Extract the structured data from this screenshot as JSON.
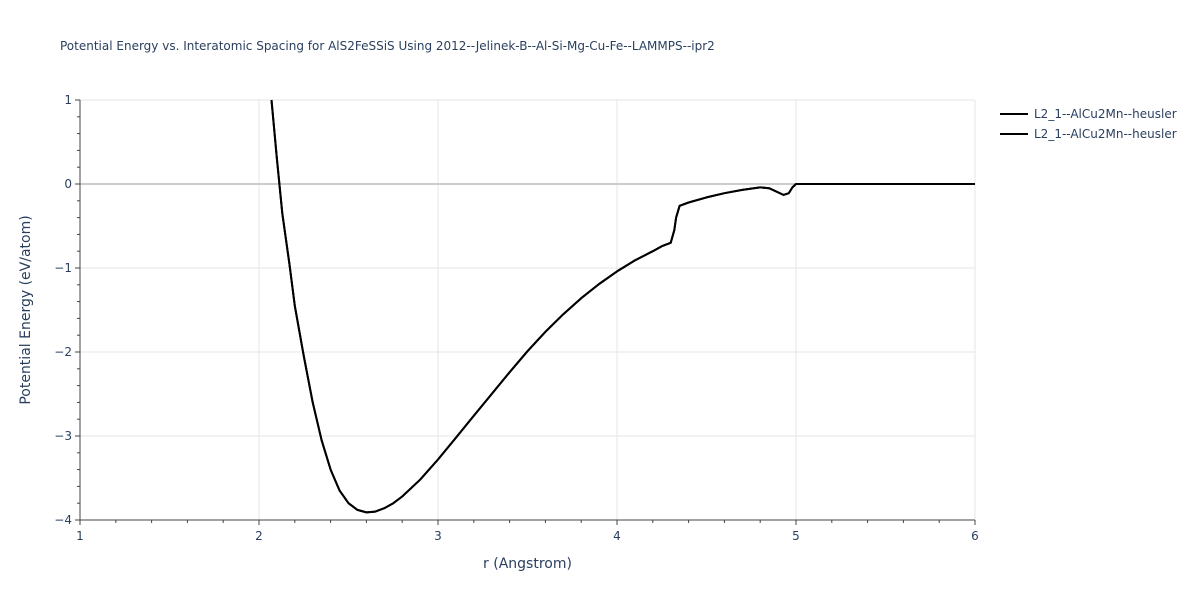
{
  "chart_data": {
    "type": "line",
    "title": "Potential Energy vs. Interatomic Spacing for AlS2FeSSiS Using 2012--Jelinek-B--Al-Si-Mg-Cu-Fe--LAMMPS--ipr2",
    "xlabel": "r (Angstrom)",
    "ylabel": "Potential Energy (eV/atom)",
    "xlim": [
      1,
      6
    ],
    "ylim": [
      -4,
      1
    ],
    "x_ticks": [
      "1",
      "2",
      "3",
      "4",
      "5",
      "6"
    ],
    "y_ticks": [
      "−4",
      "−3",
      "−2",
      "−1",
      "0",
      "1"
    ],
    "grid": true,
    "legend_position": "top-right",
    "series_color": "#000000",
    "series": [
      {
        "name": "L2_1--AlCu2Mn--heusler",
        "x": [
          2.07,
          2.1,
          2.13,
          2.17,
          2.2,
          2.25,
          2.3,
          2.35,
          2.4,
          2.45,
          2.5,
          2.55,
          2.6,
          2.65,
          2.7,
          2.75,
          2.8,
          2.9,
          3.0,
          3.1,
          3.2,
          3.3,
          3.4,
          3.5,
          3.6,
          3.7,
          3.8,
          3.9,
          4.0,
          4.1,
          4.2,
          4.25,
          4.3,
          4.32,
          4.33,
          4.35,
          4.4,
          4.5,
          4.6,
          4.7,
          4.8,
          4.85,
          4.9,
          4.93,
          4.96,
          4.98,
          5.0,
          5.5,
          6.0
        ],
        "y": [
          1.0,
          0.3,
          -0.35,
          -0.95,
          -1.45,
          -2.05,
          -2.6,
          -3.05,
          -3.4,
          -3.65,
          -3.8,
          -3.88,
          -3.91,
          -3.9,
          -3.86,
          -3.8,
          -3.72,
          -3.52,
          -3.28,
          -3.02,
          -2.76,
          -2.5,
          -2.24,
          -1.99,
          -1.76,
          -1.55,
          -1.36,
          -1.19,
          -1.04,
          -0.91,
          -0.8,
          -0.74,
          -0.7,
          -0.55,
          -0.4,
          -0.26,
          -0.22,
          -0.16,
          -0.11,
          -0.07,
          -0.04,
          -0.05,
          -0.1,
          -0.13,
          -0.11,
          -0.04,
          0.0,
          0.0,
          0.0
        ]
      },
      {
        "name": "L2_1--AlCu2Mn--heusler",
        "x": [
          2.07,
          2.1,
          2.13,
          2.17,
          2.2,
          2.25,
          2.3,
          2.35,
          2.4,
          2.45,
          2.5,
          2.55,
          2.6,
          2.65,
          2.7,
          2.75,
          2.8,
          2.9,
          3.0,
          3.1,
          3.2,
          3.3,
          3.4,
          3.5,
          3.6,
          3.7,
          3.8,
          3.9,
          4.0,
          4.1,
          4.2,
          4.25,
          4.3,
          4.32,
          4.33,
          4.35,
          4.4,
          4.5,
          4.6,
          4.7,
          4.8,
          4.85,
          4.9,
          4.93,
          4.96,
          4.98,
          5.0,
          5.5,
          6.0
        ],
        "y": [
          1.0,
          0.3,
          -0.35,
          -0.95,
          -1.45,
          -2.05,
          -2.6,
          -3.05,
          -3.4,
          -3.65,
          -3.8,
          -3.88,
          -3.91,
          -3.9,
          -3.86,
          -3.8,
          -3.72,
          -3.52,
          -3.28,
          -3.02,
          -2.76,
          -2.5,
          -2.24,
          -1.99,
          -1.76,
          -1.55,
          -1.36,
          -1.19,
          -1.04,
          -0.91,
          -0.8,
          -0.74,
          -0.7,
          -0.55,
          -0.4,
          -0.26,
          -0.22,
          -0.16,
          -0.11,
          -0.07,
          -0.04,
          -0.05,
          -0.1,
          -0.13,
          -0.11,
          -0.04,
          0.0,
          0.0,
          0.0
        ]
      }
    ]
  }
}
